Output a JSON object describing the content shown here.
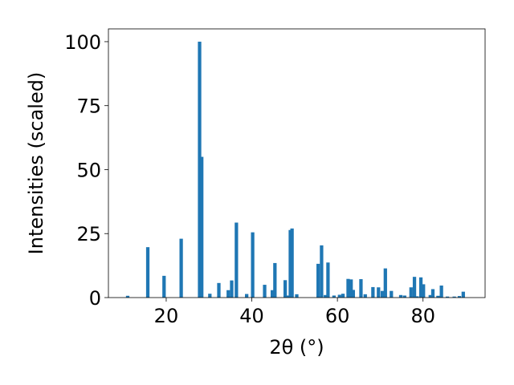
{
  "chart_data": {
    "type": "bar",
    "title": "",
    "xlabel": "2θ (°)",
    "ylabel": "Intensities (scaled)",
    "xlim": [
      6.5,
      94.5
    ],
    "ylim": [
      0,
      105
    ],
    "xticks": [
      20,
      40,
      60,
      80
    ],
    "yticks": [
      0,
      25,
      50,
      75,
      100
    ],
    "grid": false,
    "bar_color": "#1f77b4",
    "bar_width": 0.8,
    "series": [
      {
        "x": [
          11.0,
          15.7,
          19.5,
          23.5,
          27.8,
          28.3,
          30.2,
          32.3,
          34.5,
          35.3,
          36.4,
          38.8,
          40.2,
          43.0,
          44.8,
          45.4,
          47.8,
          48.3,
          49.0,
          49.4,
          50.5,
          55.5,
          56.3,
          57.2,
          57.8,
          59.2,
          60.5,
          61.3,
          62.5,
          63.2,
          63.7,
          65.5,
          66.5,
          68.3,
          69.6,
          70.5,
          71.2,
          72.6,
          74.8,
          75.7,
          77.2,
          78.0,
          78.6,
          79.5,
          80.1,
          81.7,
          82.3,
          83.5,
          84.3,
          85.7,
          87.3,
          88.5,
          89.4
        ],
        "y": [
          0.7,
          19.7,
          8.5,
          23.0,
          100.0,
          55.0,
          1.5,
          5.7,
          2.9,
          6.7,
          29.3,
          1.4,
          25.5,
          5.0,
          2.9,
          13.5,
          6.8,
          0.8,
          26.4,
          27.0,
          1.3,
          13.2,
          20.4,
          1.0,
          13.7,
          0.8,
          1.1,
          1.5,
          7.3,
          7.1,
          3.0,
          7.2,
          1.3,
          4.1,
          4.0,
          2.6,
          11.4,
          2.6,
          1.0,
          0.8,
          4.0,
          8.1,
          0.5,
          7.9,
          5.2,
          1.0,
          3.3,
          0.7,
          4.7,
          0.4,
          0.4,
          0.6,
          2.3
        ]
      }
    ]
  }
}
